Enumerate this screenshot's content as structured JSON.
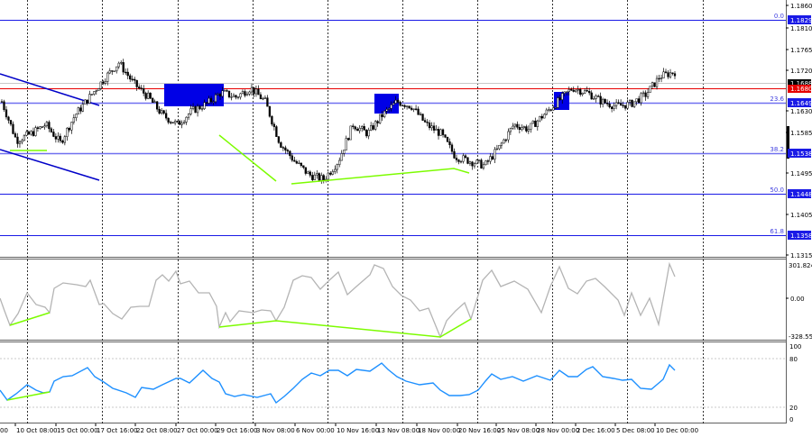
{
  "chart_data": [
    {
      "type": "candlestick",
      "title": "",
      "panel": "main",
      "ylim": [
        1.1315,
        1.186
      ],
      "y_ticks": [
        "1.1860",
        "1.1810",
        "1.1765",
        "1.1720",
        "1.1630",
        "1.1585",
        "1.1495",
        "1.1405",
        "1.1315"
      ],
      "x_ticks": [
        "10 Oct 08:00",
        "15 Oct 00:00",
        "17 Oct 16:00",
        "22 Oct 08:00",
        "27 Oct 00:00",
        "29 Oct 16:00",
        "3 Nov 08:00",
        "6 Nov 00:00",
        "10 Nov 16:00",
        "13 Nov 08:00",
        "18 Nov 00:00",
        "20 Nov 16:00",
        "25 Nov 08:00",
        "28 Nov 00:00",
        "2 Dec 16:00",
        "5 Dec 08:00",
        "10 Dec 00:00"
      ],
      "x_ticks_partial_left": "00",
      "current_bid": "1.1688",
      "horizontal_level_red": "1.1680",
      "fibonacci_levels": [
        {
          "label": "0.0",
          "price": "1.1829"
        },
        {
          "label": "23.6",
          "price": "1.1649"
        },
        {
          "label": "38.2",
          "price": "1.1538"
        },
        {
          "label": "50.0",
          "price": "1.1448"
        },
        {
          "label": "61.8",
          "price": "1.1358"
        }
      ],
      "close_path_approx": [
        1.165,
        1.1565,
        1.158,
        1.16,
        1.156,
        1.162,
        1.166,
        1.17,
        1.1735,
        1.169,
        1.166,
        1.162,
        1.16,
        1.163,
        1.1645,
        1.167,
        1.166,
        1.168,
        1.165,
        1.156,
        1.152,
        1.149,
        1.148,
        1.152,
        1.16,
        1.158,
        1.162,
        1.165,
        1.164,
        1.16,
        1.158,
        1.153,
        1.152,
        1.151,
        1.155,
        1.16,
        1.159,
        1.162,
        1.165,
        1.168,
        1.167,
        1.165,
        1.164,
        1.1645,
        1.1665,
        1.1705,
        1.1715
      ],
      "annotations": [
        "blue resistance rectangles x3",
        "descending blue channel",
        "green divergence lines"
      ]
    },
    {
      "type": "line",
      "panel": "cci",
      "y_ticks": [
        "301.8242",
        "0.00",
        "-328.551"
      ],
      "color": "#b4b4b4"
    },
    {
      "type": "line",
      "panel": "oscillator",
      "ylim": [
        0,
        100
      ],
      "y_ticks": [
        "100",
        "80",
        "20",
        "0"
      ],
      "levels": [
        80,
        20
      ],
      "color": "#1e90ff"
    }
  ],
  "colors": {
    "fib": "#1a1ae6",
    "red_level": "#e60000",
    "bid_line": "#c8c8c8",
    "rect": "#0000e6",
    "channel": "#0000c8",
    "divergence": "#7cfc00",
    "cci": "#b4b4b4",
    "osc": "#1e90ff"
  }
}
